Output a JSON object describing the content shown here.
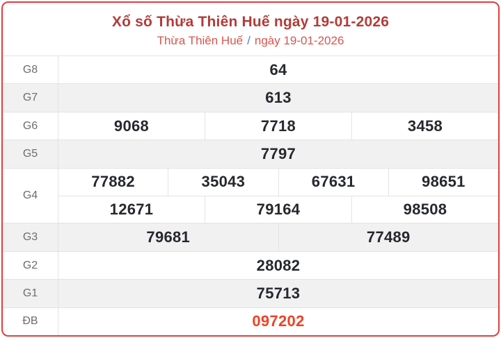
{
  "header": {
    "title": "Xổ số Thừa Thiên Huế ngày 19-01-2026",
    "region": "Thừa Thiên Huế",
    "separator": "/",
    "date": "ngày 19-01-2026"
  },
  "colors": {
    "title": "#b23b38",
    "subtitle": "#d9544c",
    "separator": "#4a7dd7",
    "border": "#e03e3e",
    "line": "#e3e3e3",
    "rowAlt": "#f1f1f2",
    "label": "#6d6d6d",
    "value": "#25282c",
    "special": "#ee4225"
  },
  "table": {
    "rows": [
      {
        "label": "G8",
        "groups": [
          [
            "64"
          ]
        ]
      },
      {
        "label": "G7",
        "groups": [
          [
            "613"
          ]
        ]
      },
      {
        "label": "G6",
        "groups": [
          [
            "9068",
            "7718",
            "3458"
          ]
        ]
      },
      {
        "label": "G5",
        "groups": [
          [
            "7797"
          ]
        ]
      },
      {
        "label": "G4",
        "groups": [
          [
            "77882",
            "35043",
            "67631",
            "98651"
          ],
          [
            "12671",
            "79164",
            "98508"
          ]
        ]
      },
      {
        "label": "G3",
        "groups": [
          [
            "79681",
            "77489"
          ]
        ]
      },
      {
        "label": "G2",
        "groups": [
          [
            "28082"
          ]
        ]
      },
      {
        "label": "G1",
        "groups": [
          [
            "75713"
          ]
        ]
      },
      {
        "label": "ĐB",
        "groups": [
          [
            "097202"
          ]
        ],
        "special": true
      }
    ]
  }
}
